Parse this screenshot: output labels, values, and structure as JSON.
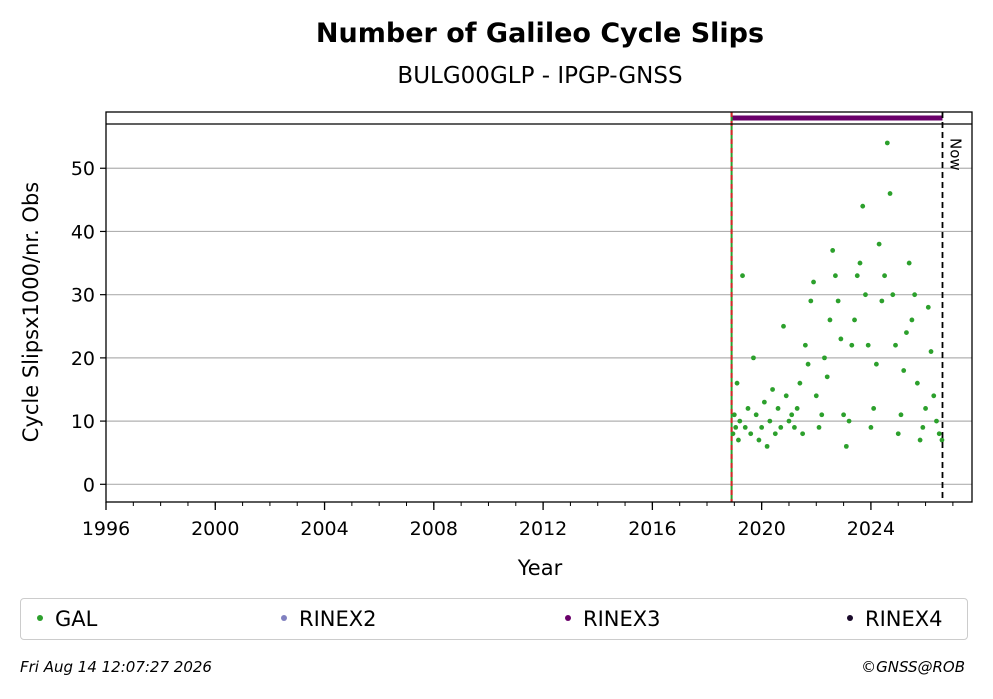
{
  "chart_data": {
    "type": "scatter",
    "title": "Number of Galileo Cycle Slips",
    "subtitle": "BULG00GLP - IPGP-GNSS",
    "xlabel": "Year",
    "ylabel": "Cycle Slipsx1000/nr. Obs",
    "xlim": [
      1996,
      2027.7
    ],
    "ylim": [
      -2.8,
      57
    ],
    "x_ticks": [
      1996,
      2000,
      2004,
      2008,
      2012,
      2016,
      2020,
      2024
    ],
    "y_ticks": [
      0,
      10,
      20,
      30,
      40,
      50
    ],
    "grid": "horizontal",
    "start_marker_year": 2018.9,
    "now_year": 2026.62,
    "now_label": "Now",
    "rinex3_bar": {
      "start": 2018.9,
      "end": 2026.62
    },
    "series": [
      {
        "name": "GAL",
        "color": "#2ca02c",
        "x": [
          2018.95,
          2019.0,
          2019.05,
          2019.1,
          2019.15,
          2019.2,
          2019.3,
          2019.4,
          2019.5,
          2019.6,
          2019.7,
          2019.8,
          2019.9,
          2020.0,
          2020.1,
          2020.2,
          2020.3,
          2020.4,
          2020.5,
          2020.6,
          2020.7,
          2020.8,
          2020.9,
          2021.0,
          2021.1,
          2021.2,
          2021.3,
          2021.4,
          2021.5,
          2021.6,
          2021.7,
          2021.8,
          2021.9,
          2022.0,
          2022.1,
          2022.2,
          2022.3,
          2022.4,
          2022.5,
          2022.6,
          2022.7,
          2022.8,
          2022.9,
          2023.0,
          2023.1,
          2023.2,
          2023.3,
          2023.4,
          2023.5,
          2023.6,
          2023.7,
          2023.8,
          2023.9,
          2024.0,
          2024.1,
          2024.2,
          2024.3,
          2024.4,
          2024.5,
          2024.6,
          2024.7,
          2024.8,
          2024.9,
          2025.0,
          2025.1,
          2025.2,
          2025.3,
          2025.4,
          2025.5,
          2025.6,
          2025.7,
          2025.8,
          2025.9,
          2026.0,
          2026.1,
          2026.2,
          2026.3,
          2026.4,
          2026.5,
          2026.6
        ],
        "y": [
          8,
          11,
          9,
          16,
          7,
          10,
          33,
          9,
          12,
          8,
          20,
          11,
          7,
          9,
          13,
          6,
          10,
          15,
          8,
          12,
          9,
          25,
          14,
          10,
          11,
          9,
          12,
          16,
          8,
          22,
          19,
          29,
          32,
          14,
          9,
          11,
          20,
          17,
          26,
          37,
          33,
          29,
          23,
          11,
          6,
          10,
          22,
          26,
          33,
          35,
          44,
          30,
          22,
          9,
          12,
          19,
          38,
          29,
          33,
          54,
          46,
          30,
          22,
          8,
          11,
          18,
          24,
          35,
          26,
          30,
          16,
          7,
          9,
          12,
          28,
          21,
          14,
          10,
          8,
          7
        ]
      },
      {
        "name": "RINEX2",
        "color": "#8080c0",
        "x": [],
        "y": []
      },
      {
        "name": "RINEX3",
        "color": "#6a006a",
        "x": [],
        "y": []
      },
      {
        "name": "RINEX4",
        "color": "#1a0a2a",
        "x": [],
        "y": []
      }
    ],
    "legend_position": "bottom"
  },
  "footer": {
    "timestamp": "Fri Aug 14 12:07:27 2026",
    "credit": "©GNSS@ROB"
  }
}
